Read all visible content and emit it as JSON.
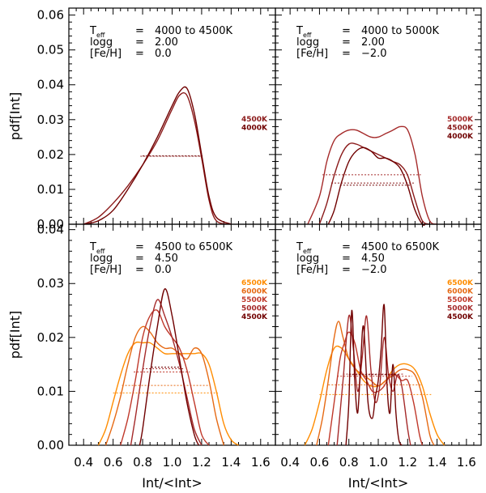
{
  "figure": {
    "xlabel": "Int/<Int>",
    "ylabel": "pdf[Int]",
    "x_ticks": [
      "0.4",
      "0.6",
      "0.8",
      "1.0",
      "1.2",
      "1.4",
      "1.6"
    ],
    "top_y_ticks": [
      "0.00",
      "0.01",
      "0.02",
      "0.03",
      "0.04",
      "0.05",
      "0.06"
    ],
    "bottom_y_ticks": [
      "0.00",
      "0.01",
      "0.02",
      "0.03",
      "0.04"
    ]
  },
  "chart_data": [
    {
      "id": "tl",
      "type": "line",
      "xlabel": "Int/<Int>",
      "ylabel": "pdf[Int]",
      "xlim": [
        0.3,
        1.7
      ],
      "ylim": [
        0,
        0.062
      ],
      "info": {
        "teff_range": "4000 to 4500K",
        "logg": "2.00",
        "feh": "0.0"
      },
      "series": [
        {
          "name": "4500K",
          "color": "#8b1a1a",
          "x": [
            0.4,
            0.5,
            0.6,
            0.7,
            0.8,
            0.9,
            1.0,
            1.05,
            1.1,
            1.15,
            1.2,
            1.25,
            1.3,
            1.4
          ],
          "y": [
            0.0,
            0.002,
            0.006,
            0.011,
            0.017,
            0.024,
            0.033,
            0.037,
            0.037,
            0.03,
            0.019,
            0.007,
            0.001,
            0.0
          ],
          "half_y": 0.0195,
          "half_x": [
            0.785,
            1.205
          ]
        },
        {
          "name": "4000K",
          "color": "#700000",
          "x": [
            0.4,
            0.5,
            0.6,
            0.7,
            0.8,
            0.9,
            1.0,
            1.05,
            1.1,
            1.15,
            1.2,
            1.25,
            1.3,
            1.4
          ],
          "y": [
            0.0,
            0.001,
            0.004,
            0.01,
            0.017,
            0.025,
            0.034,
            0.038,
            0.039,
            0.032,
            0.02,
            0.008,
            0.002,
            0.0
          ],
          "half_y": 0.0196,
          "half_x": [
            0.8,
            1.215
          ]
        }
      ]
    },
    {
      "id": "tr",
      "type": "line",
      "xlabel": "Int/<Int>",
      "ylabel": "pdf[Int]",
      "xlim": [
        0.3,
        1.7
      ],
      "ylim": [
        0,
        0.062
      ],
      "info": {
        "teff_range": "4000 to 5000K",
        "logg": "2.00",
        "feh": "−2.0"
      },
      "series": [
        {
          "name": "5000K",
          "color": "#a52a2a",
          "x": [
            0.52,
            0.6,
            0.65,
            0.7,
            0.75,
            0.8,
            0.85,
            0.9,
            0.95,
            1.0,
            1.05,
            1.1,
            1.15,
            1.2,
            1.25,
            1.3,
            1.35,
            1.4
          ],
          "y": [
            0.0,
            0.008,
            0.018,
            0.024,
            0.026,
            0.027,
            0.027,
            0.026,
            0.025,
            0.025,
            0.026,
            0.027,
            0.028,
            0.027,
            0.02,
            0.008,
            0.001,
            0.0
          ],
          "half_y": 0.0142,
          "half_x": [
            0.62,
            1.29
          ]
        },
        {
          "name": "4500K",
          "color": "#8b1a1a",
          "x": [
            0.6,
            0.65,
            0.7,
            0.75,
            0.8,
            0.85,
            0.9,
            0.95,
            1.0,
            1.05,
            1.1,
            1.15,
            1.2,
            1.25,
            1.3,
            1.35
          ],
          "y": [
            0.0,
            0.006,
            0.014,
            0.02,
            0.023,
            0.023,
            0.022,
            0.021,
            0.02,
            0.019,
            0.018,
            0.017,
            0.014,
            0.007,
            0.001,
            0.0
          ],
          "half_y": 0.0118,
          "half_x": [
            0.68,
            1.25
          ]
        },
        {
          "name": "4000K",
          "color": "#700000",
          "x": [
            0.66,
            0.7,
            0.75,
            0.8,
            0.85,
            0.9,
            0.95,
            1.0,
            1.05,
            1.1,
            1.15,
            1.2,
            1.25,
            1.3,
            1.32
          ],
          "y": [
            0.0,
            0.004,
            0.012,
            0.018,
            0.021,
            0.022,
            0.021,
            0.019,
            0.019,
            0.018,
            0.016,
            0.011,
            0.004,
            0.0,
            0.0
          ],
          "half_y": 0.0112,
          "half_x": [
            0.74,
            1.22
          ]
        }
      ]
    },
    {
      "id": "bl",
      "type": "line",
      "xlabel": "Int/<Int>",
      "ylabel": "pdf[Int]",
      "xlim": [
        0.3,
        1.7
      ],
      "ylim": [
        0,
        0.041
      ],
      "info": {
        "teff_range": "4500 to 6500K",
        "logg": "4.50",
        "feh": "0.0"
      },
      "series": [
        {
          "name": "6500K",
          "color": "#ff8c00",
          "x": [
            0.5,
            0.55,
            0.6,
            0.65,
            0.7,
            0.75,
            0.8,
            0.85,
            0.9,
            0.95,
            1.0,
            1.05,
            1.1,
            1.15,
            1.2,
            1.25,
            1.3,
            1.35,
            1.4,
            1.45
          ],
          "y": [
            0.0,
            0.003,
            0.008,
            0.013,
            0.017,
            0.019,
            0.019,
            0.019,
            0.018,
            0.017,
            0.017,
            0.017,
            0.017,
            0.017,
            0.017,
            0.015,
            0.01,
            0.004,
            0.001,
            0.0
          ],
          "half_y": 0.0097,
          "half_x": [
            0.6,
            1.31
          ]
        },
        {
          "name": "6000K",
          "color": "#e66a14",
          "x": [
            0.55,
            0.6,
            0.65,
            0.7,
            0.75,
            0.8,
            0.85,
            0.9,
            0.95,
            1.0,
            1.05,
            1.1,
            1.15,
            1.2,
            1.25,
            1.3,
            1.35
          ],
          "y": [
            0.0,
            0.004,
            0.009,
            0.015,
            0.02,
            0.022,
            0.021,
            0.019,
            0.018,
            0.018,
            0.017,
            0.016,
            0.018,
            0.017,
            0.012,
            0.005,
            0.0
          ],
          "half_y": 0.0111,
          "half_x": [
            0.66,
            1.26
          ]
        },
        {
          "name": "5500K",
          "color": "#c0392b",
          "x": [
            0.65,
            0.7,
            0.75,
            0.8,
            0.85,
            0.9,
            0.95,
            1.0,
            1.05,
            1.1,
            1.15,
            1.2,
            1.25
          ],
          "y": [
            0.0,
            0.005,
            0.012,
            0.02,
            0.024,
            0.025,
            0.022,
            0.02,
            0.018,
            0.014,
            0.008,
            0.002,
            0.0
          ],
          "half_y": 0.0136,
          "half_x": [
            0.74,
            1.12
          ]
        },
        {
          "name": "5000K",
          "color": "#a52a2a",
          "x": [
            0.72,
            0.75,
            0.8,
            0.85,
            0.9,
            0.95,
            1.0,
            1.05,
            1.1,
            1.15,
            1.2
          ],
          "y": [
            0.0,
            0.005,
            0.014,
            0.022,
            0.027,
            0.024,
            0.02,
            0.015,
            0.009,
            0.003,
            0.0
          ],
          "half_y": 0.0142,
          "half_x": [
            0.8,
            1.08
          ]
        },
        {
          "name": "4500K",
          "color": "#700000",
          "x": [
            0.78,
            0.8,
            0.85,
            0.9,
            0.95,
            1.0,
            1.05,
            1.1,
            1.15,
            1.18
          ],
          "y": [
            0.0,
            0.003,
            0.013,
            0.022,
            0.029,
            0.024,
            0.016,
            0.008,
            0.002,
            0.0
          ],
          "half_y": 0.0145,
          "half_x": [
            0.86,
            1.06
          ]
        }
      ]
    },
    {
      "id": "br",
      "type": "line",
      "xlabel": "Int/<Int>",
      "ylabel": "pdf[Int]",
      "xlim": [
        0.3,
        1.7
      ],
      "ylim": [
        0,
        0.041
      ],
      "info": {
        "teff_range": "4500 to 6500K",
        "logg": "4.50",
        "feh": "−2.0"
      },
      "series": [
        {
          "name": "6500K",
          "color": "#ff8c00",
          "x": [
            0.5,
            0.55,
            0.6,
            0.65,
            0.7,
            0.75,
            0.8,
            0.85,
            0.9,
            0.95,
            1.0,
            1.05,
            1.1,
            1.15,
            1.2,
            1.25,
            1.3,
            1.35,
            1.4,
            1.45
          ],
          "y": [
            0.0,
            0.003,
            0.008,
            0.014,
            0.018,
            0.018,
            0.016,
            0.014,
            0.012,
            0.011,
            0.011,
            0.012,
            0.014,
            0.015,
            0.015,
            0.014,
            0.011,
            0.006,
            0.002,
            0.0
          ],
          "half_y": 0.0094,
          "half_x": [
            0.6,
            1.36
          ]
        },
        {
          "name": "6000K",
          "color": "#e66a14",
          "x": [
            0.58,
            0.62,
            0.66,
            0.7,
            0.73,
            0.76,
            0.8,
            0.85,
            0.9,
            0.95,
            1.0,
            1.05,
            1.1,
            1.15,
            1.2,
            1.25,
            1.3,
            1.35,
            1.38
          ],
          "y": [
            0.0,
            0.005,
            0.012,
            0.02,
            0.023,
            0.02,
            0.016,
            0.014,
            0.013,
            0.012,
            0.011,
            0.012,
            0.013,
            0.014,
            0.014,
            0.013,
            0.009,
            0.002,
            0.0
          ],
          "half_y": 0.0112,
          "half_x": [
            0.66,
            1.3
          ]
        },
        {
          "name": "5500K",
          "color": "#c0392b",
          "x": [
            0.66,
            0.7,
            0.74,
            0.77,
            0.8,
            0.84,
            0.88,
            0.92,
            0.96,
            1.0,
            1.04,
            1.08,
            1.12,
            1.16,
            1.2,
            1.24,
            1.28,
            1.3
          ],
          "y": [
            0.0,
            0.008,
            0.016,
            0.019,
            0.021,
            0.019,
            0.014,
            0.012,
            0.01,
            0.01,
            0.011,
            0.013,
            0.013,
            0.012,
            0.012,
            0.008,
            0.002,
            0.0
          ],
          "half_y": 0.0128,
          "half_x": [
            0.72,
            1.23
          ]
        },
        {
          "name": "5000K",
          "color": "#a52a2a",
          "x": [
            0.72,
            0.76,
            0.8,
            0.83,
            0.86,
            0.89,
            0.92,
            0.95,
            0.98,
            1.01,
            1.04,
            1.07,
            1.1,
            1.13,
            1.16,
            1.2,
            1.22
          ],
          "y": [
            0.0,
            0.012,
            0.024,
            0.018,
            0.01,
            0.016,
            0.024,
            0.014,
            0.008,
            0.011,
            0.02,
            0.013,
            0.01,
            0.013,
            0.011,
            0.003,
            0.0
          ],
          "half_y": 0.0132,
          "half_x": [
            0.76,
            1.17
          ]
        },
        {
          "name": "4500K",
          "color": "#700000",
          "x": [
            0.78,
            0.8,
            0.82,
            0.84,
            0.86,
            0.88,
            0.9,
            0.93,
            0.96,
            0.98,
            1.0,
            1.02,
            1.04,
            1.06,
            1.08,
            1.1,
            1.12,
            1.14,
            1.16
          ],
          "y": [
            0.0,
            0.008,
            0.025,
            0.012,
            0.006,
            0.015,
            0.022,
            0.008,
            0.005,
            0.009,
            0.012,
            0.018,
            0.026,
            0.011,
            0.006,
            0.015,
            0.006,
            0.001,
            0.0
          ],
          "half_y": 0.0131,
          "half_x": [
            0.8,
            1.14
          ]
        }
      ]
    }
  ]
}
